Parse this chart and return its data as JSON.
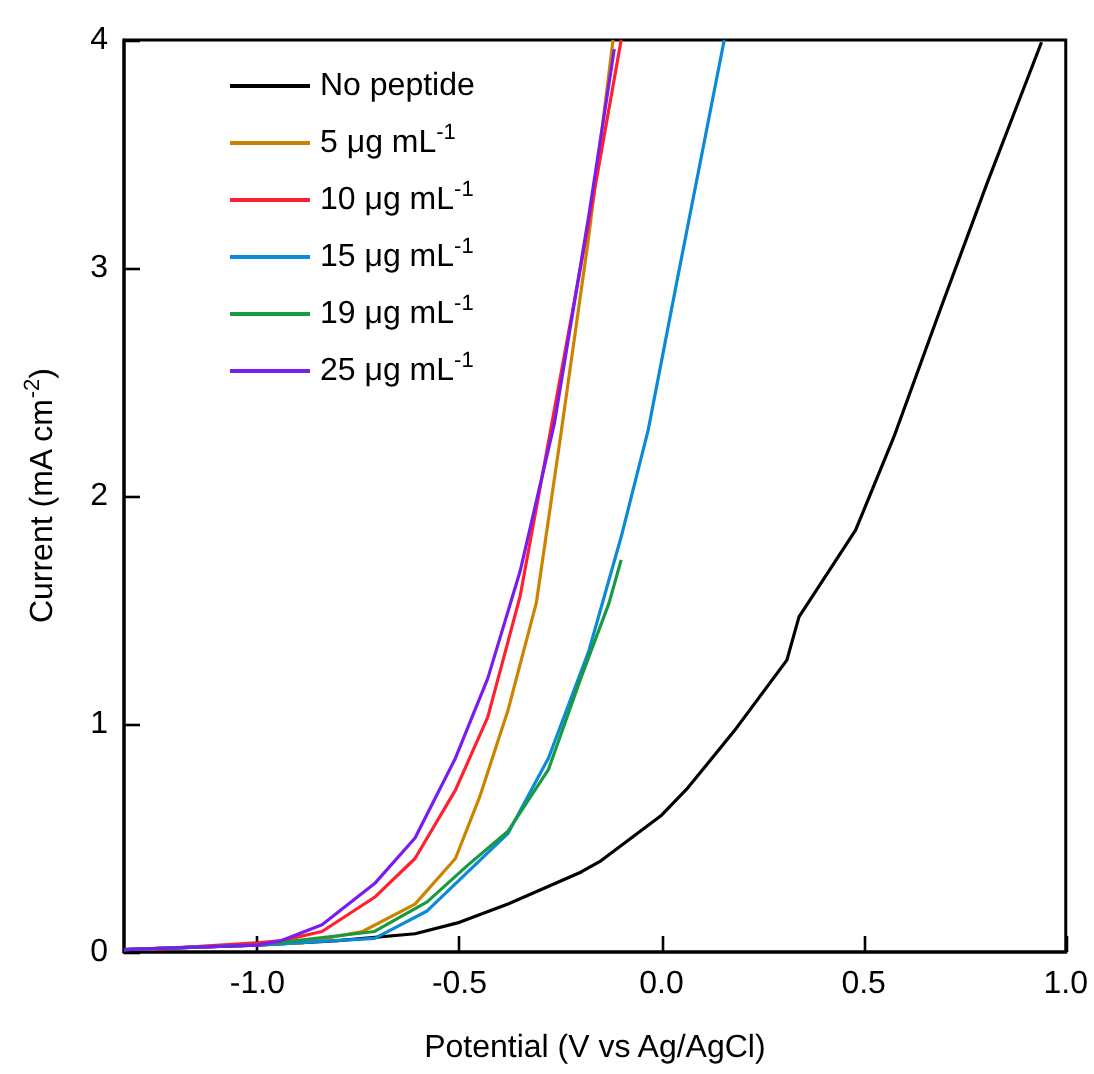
{
  "chart_data": {
    "type": "line",
    "xlabel": "Potential (V vs Ag/AgCl)",
    "ylabel": "Current (mA cm$^{-2}$)",
    "xlim": [
      -1.33,
      1.0
    ],
    "xticks": [
      {
        "value": -1.0,
        "label": "-1.0"
      },
      -0.5,
      {
        "value": 0.0,
        "label": "0.0"
      },
      0.5,
      {
        "value": 1.0,
        "label": "1.0"
      }
    ],
    "ylim": [
      0,
      4
    ],
    "yticks": [
      0,
      1,
      2,
      3,
      4
    ],
    "grid": false,
    "legend": "top left",
    "marker": "none",
    "line_style": "solid",
    "series": [
      {
        "name": "No peptide",
        "color": "#000000",
        "x": [
          -1.33,
          -1.0,
          -0.8,
          -0.61,
          -0.5,
          -0.38,
          -0.2,
          -0.15,
          0.0,
          0.065,
          0.18,
          0.31,
          0.34,
          0.48,
          0.575,
          0.69,
          0.805,
          0.94
        ],
        "values": [
          0.01,
          0.03,
          0.05,
          0.08,
          0.13,
          0.21,
          0.35,
          0.4,
          0.6,
          0.72,
          0.97,
          1.28,
          1.47,
          1.85,
          2.26,
          2.82,
          3.37,
          3.99
        ]
      },
      {
        "name": "5 μg mL$^{-1}$",
        "color": "#cc8400",
        "x": [
          -1.33,
          -0.89,
          -0.74,
          -0.61,
          -0.51,
          -0.45,
          -0.38,
          -0.31,
          -0.25,
          -0.18,
          -0.12
        ],
        "values": [
          0.01,
          0.04,
          0.09,
          0.21,
          0.41,
          0.68,
          1.06,
          1.53,
          2.26,
          3.14,
          4.0
        ]
      },
      {
        "name": "10 μg mL$^{-1}$",
        "color": "#ff2030",
        "x": [
          -1.27,
          -1.0,
          -0.94,
          -0.84,
          -0.71,
          -0.61,
          -0.51,
          -0.43,
          -0.35,
          -0.265,
          -0.18,
          -0.1
        ],
        "values": [
          0.01,
          0.04,
          0.05,
          0.09,
          0.24,
          0.41,
          0.71,
          1.03,
          1.56,
          2.38,
          3.2,
          4.0
        ]
      },
      {
        "name": "15 μg mL$^{-1}$",
        "color": "#0a8ad8",
        "x": [
          -1.33,
          -1.0,
          -0.71,
          -0.58,
          -0.48,
          -0.38,
          -0.28,
          -0.18,
          -0.1,
          -0.033,
          0.04,
          0.155
        ],
        "values": [
          0.01,
          0.03,
          0.06,
          0.18,
          0.35,
          0.52,
          0.85,
          1.32,
          1.82,
          2.29,
          2.96,
          4.0
        ]
      },
      {
        "name": "19 μg mL$^{-1}$",
        "color": "#1a9a40",
        "x": [
          -1.33,
          -1.0,
          -0.71,
          -0.58,
          -0.48,
          -0.38,
          -0.28,
          -0.2,
          -0.13,
          -0.1
        ],
        "values": [
          0.01,
          0.03,
          0.09,
          0.22,
          0.38,
          0.53,
          0.8,
          1.2,
          1.53,
          1.72
        ]
      },
      {
        "name": "25 μg mL$^{-1}$",
        "color": "#7a1cf0",
        "x": [
          -1.33,
          -1.0,
          -0.94,
          -0.84,
          -0.71,
          -0.61,
          -0.51,
          -0.43,
          -0.35,
          -0.265,
          -0.18,
          -0.117
        ],
        "values": [
          0.01,
          0.03,
          0.05,
          0.12,
          0.3,
          0.5,
          0.85,
          1.2,
          1.67,
          2.32,
          3.23,
          3.96
        ]
      }
    ]
  }
}
